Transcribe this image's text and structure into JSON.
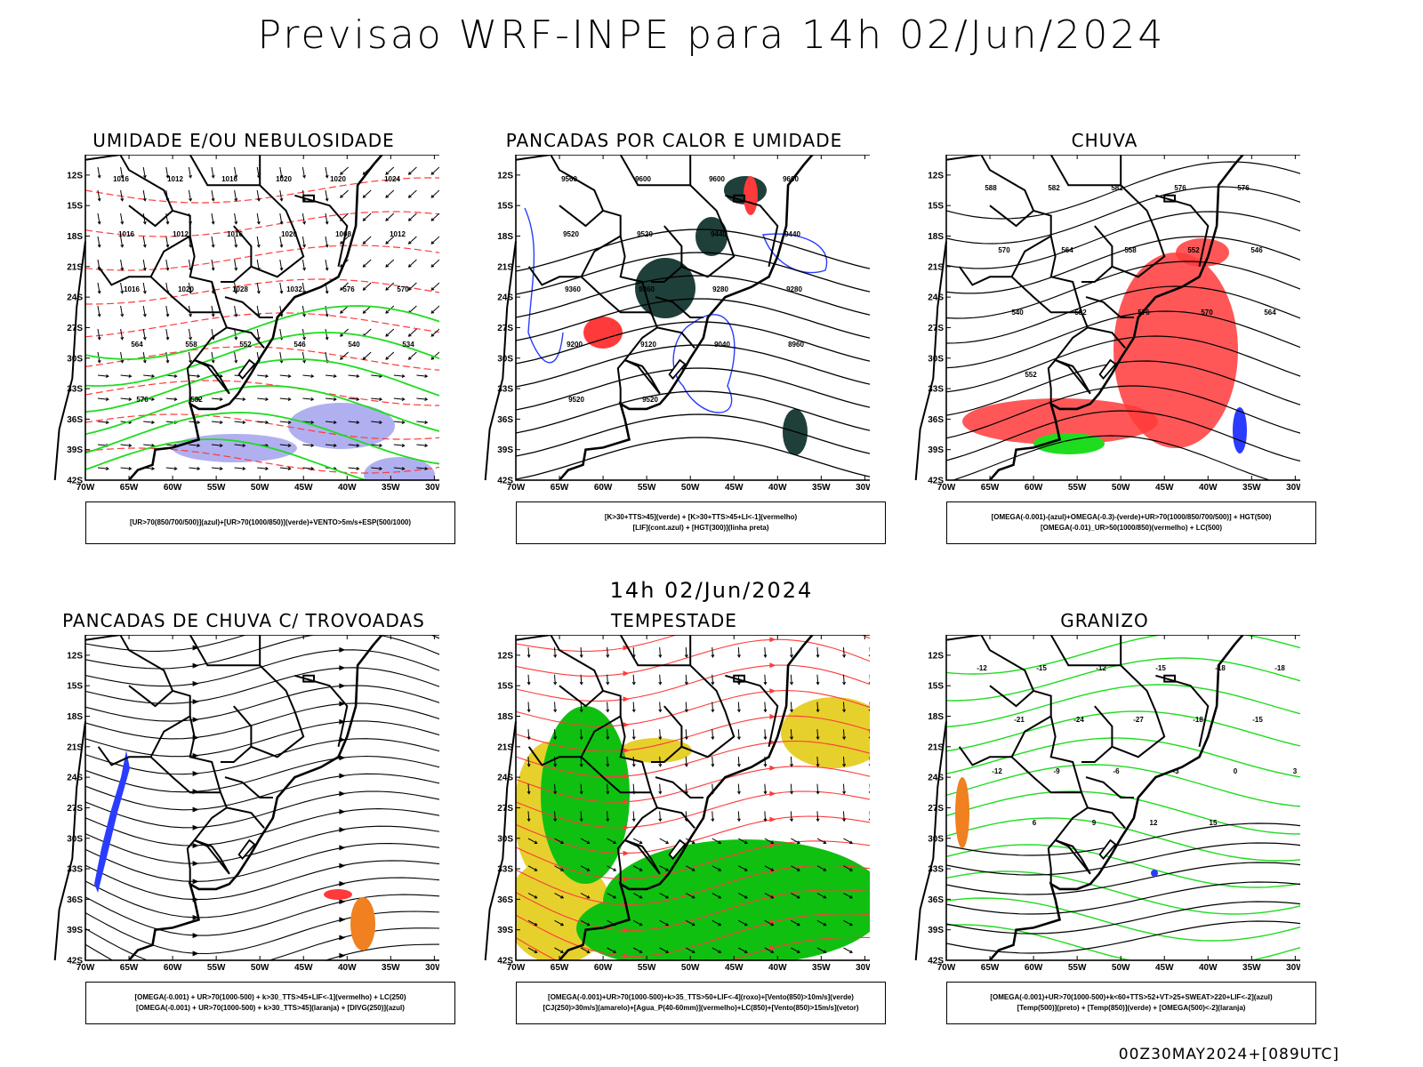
{
  "header": {
    "title": "Previsao WRF-INPE  para 14h 02/Jun/2024"
  },
  "mid_title": "14h 02/Jun/2024",
  "footer": "00Z30MAY2024+[089UTC]",
  "axis": {
    "lat_labels": [
      "12S",
      "15S",
      "18S",
      "21S",
      "24S",
      "27S",
      "30S",
      "33S",
      "36S",
      "39S",
      "42S"
    ],
    "lon_labels": [
      "70W",
      "65W",
      "60W",
      "55W",
      "50W",
      "45W",
      "40W",
      "35W",
      "30W"
    ]
  },
  "colors": {
    "frame": "#000000",
    "red": "#ff3a3a",
    "green": "#1fdc1f",
    "blue": "#2a3cff",
    "lavender": "#a7a7f0",
    "darkteal": "#1f3f3a",
    "orange": "#f08020",
    "yellow": "#e6d02c",
    "field_green": "#10c010"
  },
  "panels": [
    {
      "title": "UMIDADE E/OU NEBULOSIDADE",
      "legend": [
        "[UR>70(850/700/500)](azul)+[UR>70(1000/850)](verde)+VENTO>5m/s+ESP(500/1000)"
      ],
      "contour_labels": [
        "1016",
        "1012",
        "1016",
        "1020",
        "1020",
        "1024",
        "1016",
        "1012",
        "1016",
        "1020",
        "1008",
        "1012",
        "1016",
        "1020",
        "1028",
        "1032",
        "576",
        "570",
        "564",
        "558",
        "552",
        "546",
        "540",
        "534",
        "576",
        "582"
      ]
    },
    {
      "title": "PANCADAS POR CALOR E UMIDADE",
      "legend": [
        "[K>30+TTS>45](verde) + [K>30+TTS>45+LI<-1](vermelho)",
        "[LIF](cont.azul) + [HGT(300)](linha preta)"
      ],
      "contour_labels": [
        "9560",
        "9600",
        "9600",
        "9600",
        "9520",
        "9520",
        "9440",
        "9440",
        "9360",
        "9360",
        "9280",
        "9280",
        "9200",
        "9120",
        "9040",
        "8960",
        "9520",
        "9520"
      ]
    },
    {
      "title": "CHUVA",
      "legend": [
        "[OMEGA(-0.001)-(azul)+OMEGA(-0.3)-(verde)+UR>70(1000/850/700/500)] + HGT(500)",
        "[OMEGA(-0.01)_UR>50(1000/850)(vermelho) + LC(500)"
      ],
      "contour_labels": [
        "588",
        "582",
        "582",
        "576",
        "576",
        "570",
        "564",
        "558",
        "552",
        "546",
        "540",
        "582",
        "576",
        "570",
        "564",
        "552"
      ]
    },
    {
      "title": "PANCADAS DE CHUVA C/ TROVOADAS",
      "legend": [
        "[OMEGA(-0.001) + UR>70(1000-500) + k>30_TTS>45+LIF<-1](vermelho) + LC(250)",
        "[OMEGA(-0.001) + UR>70(1000-500) + k>30_TTS>45](laranja) + [DIVG(250)](azul)"
      ],
      "contour_labels": []
    },
    {
      "title": "TEMPESTADE",
      "legend": [
        "[OMEGA(-0.001)+UR>70(1000-500)+k>35_TTS>50+LIF<-4](roxo)+[Vento(850)>10m/s](verde)",
        "[CJ(250)>30m/s](amarelo)+[Agua_P(40-60mm)](vermelho)+LC(850)+[Vento(850)>15m/s](vetor)"
      ],
      "contour_labels": []
    },
    {
      "title": "GRANIZO",
      "legend": [
        "[OMEGA(-0.001)+UR>70(1000-500)+k<60+TTS>52+VT>25+SWEAT>220+LIF<-2](azul)",
        "[Temp(500)](preto) + [Temp(850)](verde) + [OMEGA(500)<-2](laranja)"
      ],
      "contour_labels": [
        "-12",
        "-15",
        "-12",
        "-15",
        "-18",
        "-18",
        "-21",
        "-24",
        "-27",
        "-18",
        "-15",
        "-12",
        "-9",
        "-6",
        "-3",
        "0",
        "3",
        "6",
        "9",
        "12",
        "15"
      ]
    }
  ]
}
